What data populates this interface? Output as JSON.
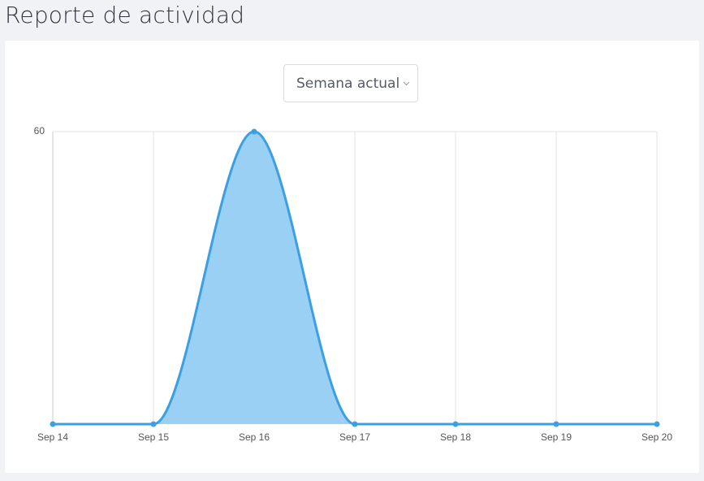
{
  "header": {
    "title": "Reporte de actividad"
  },
  "filter": {
    "label": "Semana actual"
  },
  "chart_data": {
    "type": "area",
    "categories": [
      "Sep 14",
      "Sep 15",
      "Sep 16",
      "Sep 17",
      "Sep 18",
      "Sep 19",
      "Sep 20"
    ],
    "values": [
      0,
      0,
      60,
      0,
      0,
      0,
      0
    ],
    "color": "#3b9fe3",
    "fill": "#9bd0f5",
    "ylim": [
      0,
      60
    ],
    "yticks": [
      60
    ],
    "grid": true
  }
}
